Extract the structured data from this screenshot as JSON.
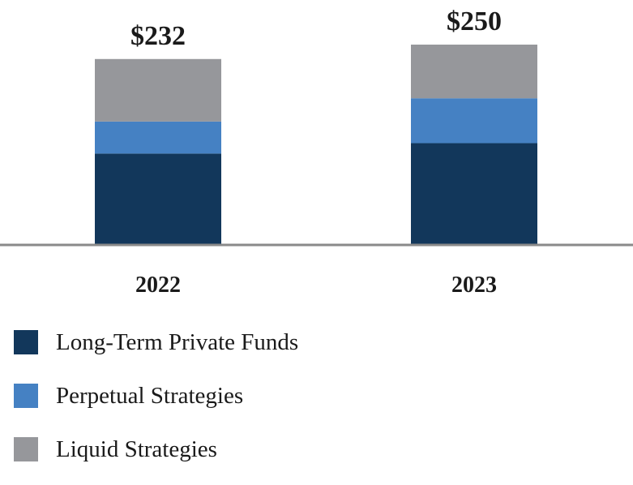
{
  "chart_data": {
    "type": "bar",
    "stacked": true,
    "categories": [
      "2022",
      "2023"
    ],
    "totals": [
      "$232",
      "$250"
    ],
    "series": [
      {
        "name": "Long-Term Private Funds",
        "color": "#12375b",
        "values": [
          114,
          127
        ]
      },
      {
        "name": "Perpetual Strategies",
        "color": "#4581c3",
        "values": [
          40,
          56
        ]
      },
      {
        "name": "Liquid Strategies",
        "color": "#96979b",
        "values": [
          78,
          67
        ]
      }
    ],
    "ylim": [
      0,
      250
    ],
    "grid": false,
    "legend_position": "bottom-left"
  }
}
